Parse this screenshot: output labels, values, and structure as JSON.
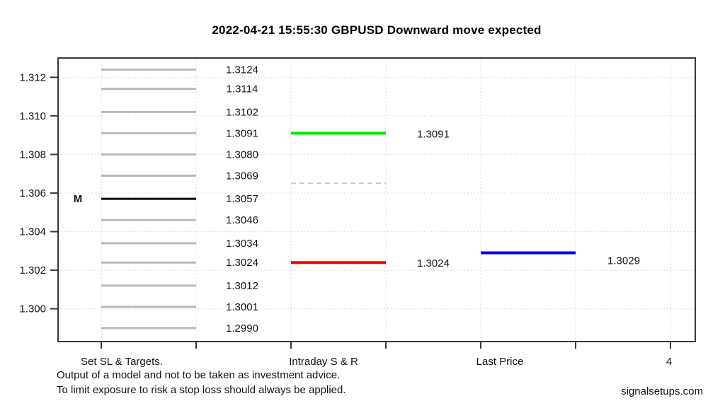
{
  "page": {
    "background": "#ffffff",
    "frame_color": "#383838",
    "text_color": "#131313"
  },
  "chart_data": {
    "type": "line",
    "title": "2022-04-21 15:55:30 GBPUSD Downward move expected",
    "ylim": [
      1.2983,
      1.313
    ],
    "grid": {
      "style": "dotted",
      "color": "#dadada",
      "on": true
    },
    "legend_position": "none",
    "y_ticks": [
      {
        "value": 1.312,
        "label": "1.312"
      },
      {
        "value": 1.31,
        "label": "1.310"
      },
      {
        "value": 1.308,
        "label": "1.308"
      },
      {
        "value": 1.306,
        "label": "1.306"
      },
      {
        "value": 1.304,
        "label": "1.304"
      },
      {
        "value": 1.302,
        "label": "1.302"
      },
      {
        "value": 1.3,
        "label": "1.300"
      }
    ],
    "x_labels": [
      "Set SL & Targets.",
      "Intraday S & R",
      "Last Price",
      "4"
    ],
    "sl_targets": {
      "x_label": "Set SL & Targets.",
      "median_marker": "M",
      "levels": [
        {
          "price": 1.3124,
          "label": "1.3124",
          "color": "#b9b9b9"
        },
        {
          "price": 1.3114,
          "label": "1.3114",
          "color": "#b9b9b9"
        },
        {
          "price": 1.3102,
          "label": "1.3102",
          "color": "#b9b9b9"
        },
        {
          "price": 1.3091,
          "label": "1.3091",
          "color": "#b9b9b9"
        },
        {
          "price": 1.308,
          "label": "1.3080",
          "color": "#b9b9b9"
        },
        {
          "price": 1.3069,
          "label": "1.3069",
          "color": "#b9b9b9"
        },
        {
          "price": 1.3057,
          "label": "1.3057",
          "color": "#000000",
          "marker": "M"
        },
        {
          "price": 1.3046,
          "label": "1.3046",
          "color": "#b9b9b9"
        },
        {
          "price": 1.3034,
          "label": "1.3034",
          "color": "#b9b9b9"
        },
        {
          "price": 1.3024,
          "label": "1.3024",
          "color": "#b9b9b9"
        },
        {
          "price": 1.3012,
          "label": "1.3012",
          "color": "#b9b9b9"
        },
        {
          "price": 1.3001,
          "label": "1.3001",
          "color": "#b9b9b9"
        },
        {
          "price": 1.299,
          "label": "1.2990",
          "color": "#b9b9b9"
        }
      ]
    },
    "intraday_sr": {
      "x_label": "Intraday S & R",
      "lines": [
        {
          "price": 1.3091,
          "label": "1.3091",
          "color": "#00ea00",
          "style": "solid"
        },
        {
          "price": 1.3065,
          "label": "",
          "color": "#c8c8c8",
          "style": "dashed"
        },
        {
          "price": 1.3024,
          "label": "1.3024",
          "color": "#ff0000",
          "style": "solid"
        }
      ]
    },
    "last_price": {
      "x_label": "Last Price",
      "lines": [
        {
          "price": 1.3029,
          "label": "1.3029",
          "color": "#0000ee",
          "style": "solid"
        }
      ]
    }
  },
  "footer": {
    "disclaimer_line1": "Output of a model and not to be taken as investment advice.",
    "disclaimer_line2": "To limit exposure to risk a stop loss should always be applied.",
    "brand": "signalsetups.com"
  }
}
